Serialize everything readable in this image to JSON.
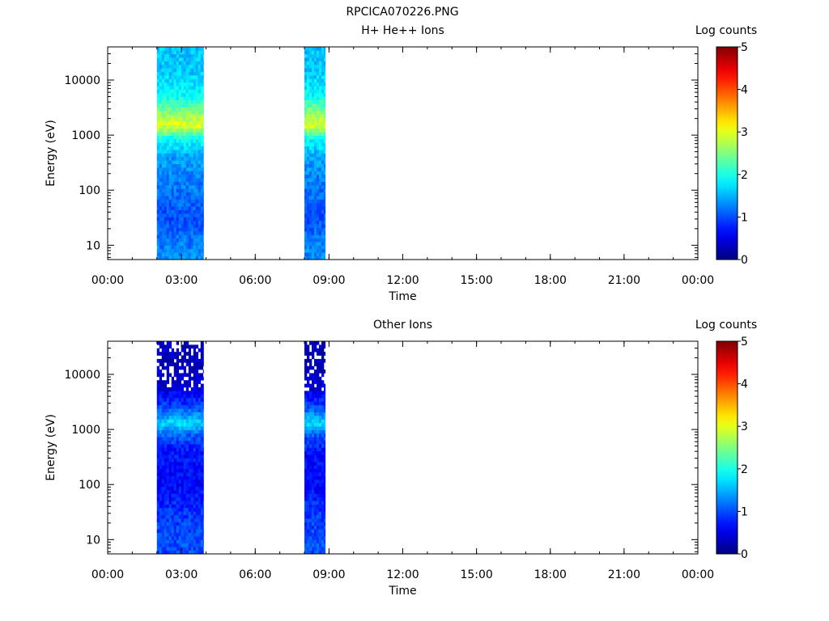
{
  "figure_title": "RPCICA070226.PNG",
  "chart_data": [
    {
      "type": "heatmap",
      "title": "H+ He++ Ions",
      "xlabel": "Time",
      "ylabel": "Energy (eV)",
      "colorbar_label": "Log counts",
      "x_ticks": [
        "00:00",
        "03:00",
        "06:00",
        "09:00",
        "12:00",
        "15:00",
        "18:00",
        "21:00",
        "00:00"
      ],
      "x_range_hours": [
        0,
        24
      ],
      "y_scale": "log",
      "y_range_eV": [
        5.5,
        40000
      ],
      "y_ticks": [
        "10",
        "100",
        "1000",
        "10000"
      ],
      "colorbar_range": [
        0,
        5
      ],
      "colorbar_ticks": [
        "0",
        "1",
        "2",
        "3",
        "4",
        "5"
      ],
      "data_intervals_hours": [
        [
          2.0,
          3.9
        ],
        [
          8.0,
          8.85
        ]
      ],
      "energy_profile_log_counts": [
        {
          "energy_eV": 8,
          "log_counts": 1.3
        },
        {
          "energy_eV": 30,
          "log_counts": 1.0
        },
        {
          "energy_eV": 100,
          "log_counts": 1.2
        },
        {
          "energy_eV": 400,
          "log_counts": 1.4
        },
        {
          "energy_eV": 900,
          "log_counts": 2.0
        },
        {
          "energy_eV": 1500,
          "log_counts": 3.0
        },
        {
          "energy_eV": 2500,
          "log_counts": 2.6
        },
        {
          "energy_eV": 5000,
          "log_counts": 1.9
        },
        {
          "energy_eV": 15000,
          "log_counts": 1.6
        },
        {
          "energy_eV": 40000,
          "log_counts": 1.6
        }
      ]
    },
    {
      "type": "heatmap",
      "title": "Other Ions",
      "xlabel": "Time",
      "ylabel": "Energy (eV)",
      "colorbar_label": "Log counts",
      "x_ticks": [
        "00:00",
        "03:00",
        "06:00",
        "09:00",
        "12:00",
        "15:00",
        "18:00",
        "21:00",
        "00:00"
      ],
      "x_range_hours": [
        0,
        24
      ],
      "y_scale": "log",
      "y_range_eV": [
        5.5,
        40000
      ],
      "y_ticks": [
        "10",
        "100",
        "1000",
        "10000"
      ],
      "colorbar_range": [
        0,
        5
      ],
      "colorbar_ticks": [
        "0",
        "1",
        "2",
        "3",
        "4",
        "5"
      ],
      "data_intervals_hours": [
        [
          2.0,
          3.9
        ],
        [
          8.0,
          8.85
        ]
      ],
      "energy_profile_log_counts": [
        {
          "energy_eV": 8,
          "log_counts": 1.0
        },
        {
          "energy_eV": 30,
          "log_counts": 0.9
        },
        {
          "energy_eV": 100,
          "log_counts": 0.6
        },
        {
          "energy_eV": 400,
          "log_counts": 0.7
        },
        {
          "energy_eV": 800,
          "log_counts": 1.1
        },
        {
          "energy_eV": 1300,
          "log_counts": 1.7
        },
        {
          "energy_eV": 2500,
          "log_counts": 1.0
        },
        {
          "energy_eV": 6000,
          "log_counts": 0.4
        },
        {
          "energy_eV": 15000,
          "log_counts": 0.3
        },
        {
          "energy_eV": 40000,
          "log_counts": 0.3
        }
      ]
    }
  ]
}
